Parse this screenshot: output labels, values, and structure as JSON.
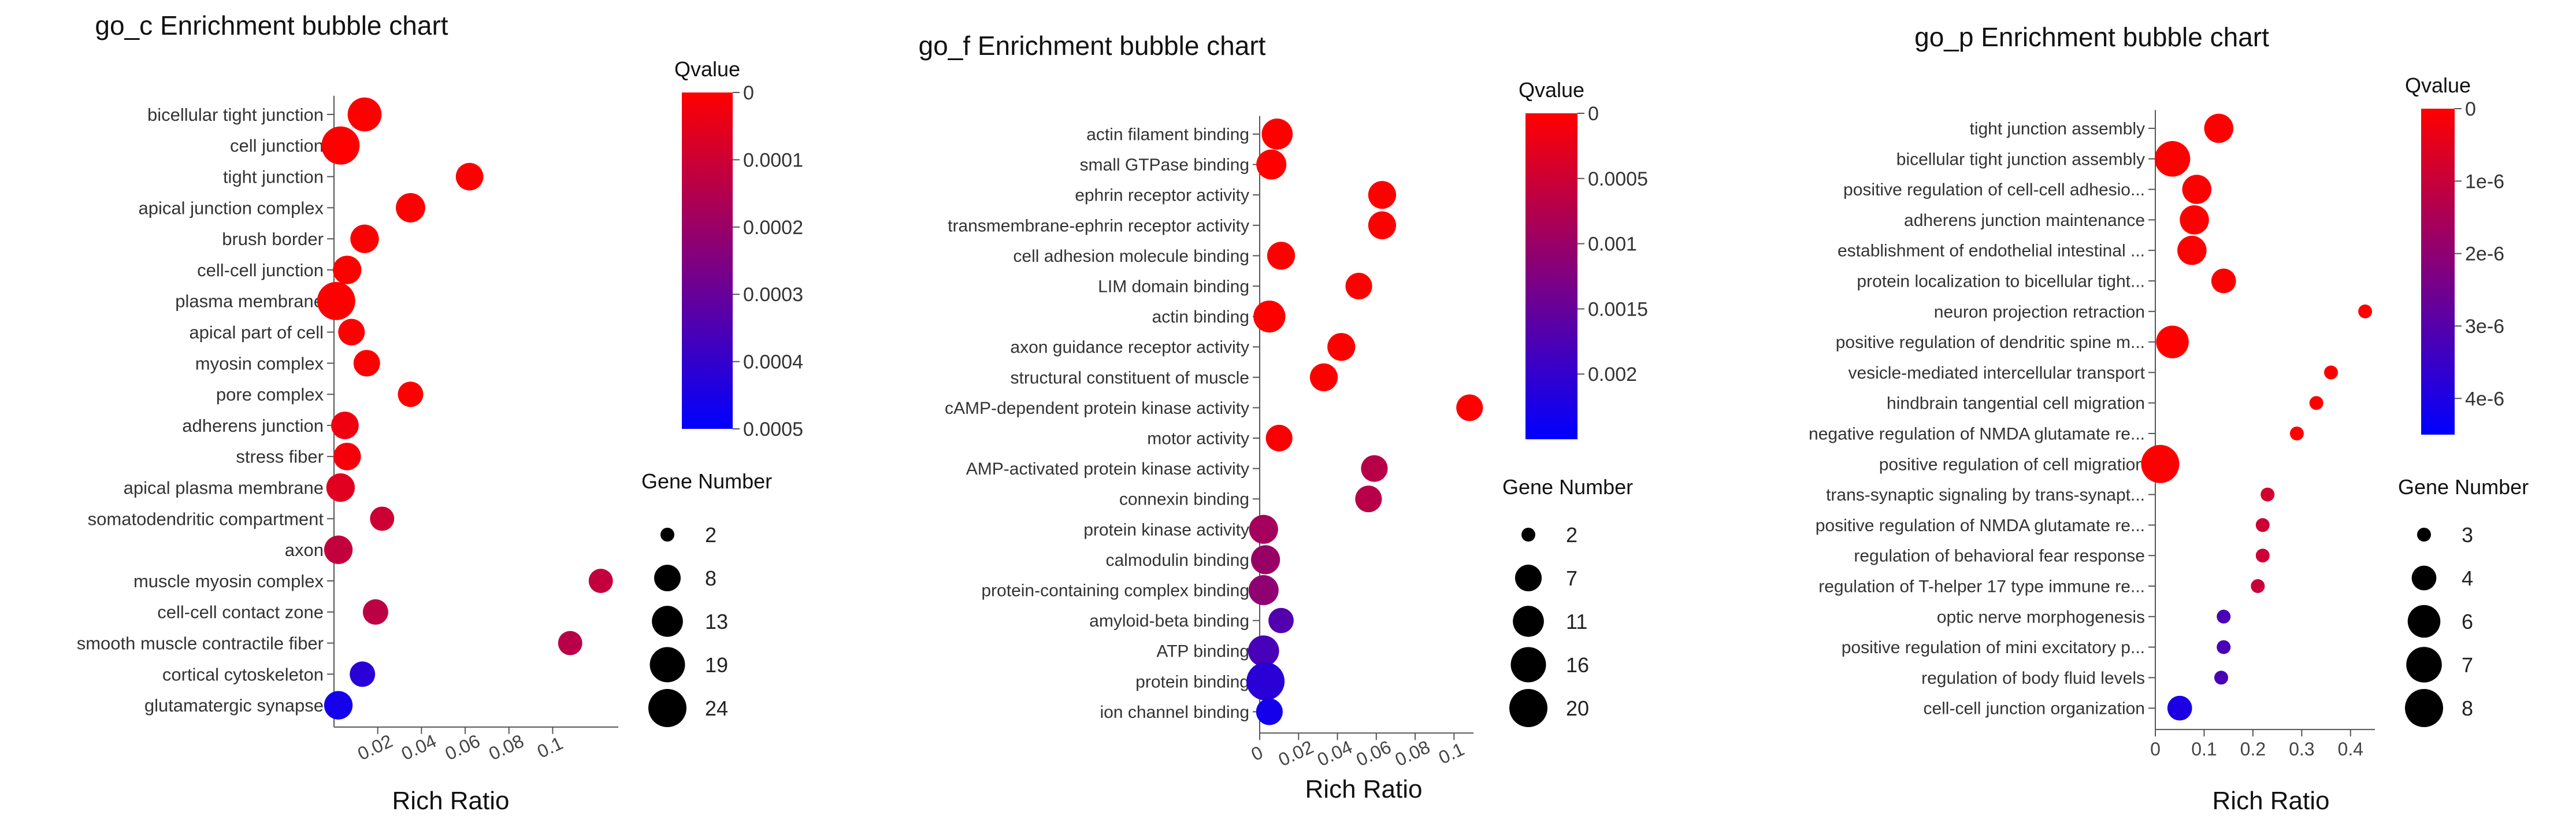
{
  "chart_data": [
    {
      "type": "scatter",
      "title": "go_c Enrichment bubble chart",
      "xlabel": "Rich Ratio",
      "ylabel": "",
      "xlim": [
        0,
        0.13
      ],
      "xticks": [
        0.02,
        0.04,
        0.06,
        0.08,
        0.1
      ],
      "tick_labels": [
        "0.02",
        "0.04",
        "0.06",
        "0.08",
        "0.1"
      ],
      "categories": [
        "bicellular tight junction",
        "cell junction",
        "tight junction",
        "apical junction complex",
        "brush border",
        "cell-cell junction",
        "plasma membrane",
        "apical part of cell",
        "myosin complex",
        "pore complex",
        "adherens junction",
        "stress fiber",
        "apical plasma membrane",
        "somatodendritic compartment",
        "axon",
        "muscle myosin complex",
        "cell-cell contact zone",
        "smooth muscle contractile fiber",
        "cortical cytoskeleton",
        "glutamatergic synapse"
      ],
      "x": [
        0.014,
        0.003,
        0.062,
        0.035,
        0.014,
        0.006,
        0.001,
        0.008,
        0.015,
        0.035,
        0.005,
        0.006,
        0.003,
        0.022,
        0.002,
        0.122,
        0.019,
        0.108,
        0.013,
        0.002
      ],
      "size": [
        17,
        24,
        9,
        11,
        10,
        10,
        24,
        8,
        8,
        7,
        9,
        9,
        10,
        6,
        10,
        6,
        7,
        6,
        7,
        10
      ],
      "color": [
        0.0,
        0.0,
        0.0,
        0.0,
        0.0,
        0.0,
        0.0,
        0.0,
        0.0,
        0.0,
        3e-05,
        2e-05,
        6e-05,
        0.0001,
        0.00012,
        0.00012,
        0.00013,
        0.00014,
        0.00042,
        0.00046
      ],
      "legend": {
        "color_title": "Qvalue",
        "color_range": [
          0,
          0.0005
        ],
        "color_ticks": [
          0,
          0.0001,
          0.0002,
          0.0003,
          0.0004,
          0.0005
        ],
        "color_tick_labels": [
          "0",
          "0.0001",
          "0.0002",
          "0.0003",
          "0.0004",
          "0.0005"
        ],
        "size_title": "Gene Number",
        "size_values": [
          2,
          8,
          13,
          19,
          24
        ],
        "size_labels": [
          "2",
          "8",
          "13",
          "19",
          "24"
        ]
      }
    },
    {
      "type": "scatter",
      "title": "go_f Enrichment bubble chart",
      "xlabel": "Rich Ratio",
      "ylabel": "",
      "xlim": [
        0,
        0.11
      ],
      "xticks": [
        0,
        0.02,
        0.04,
        0.06,
        0.08,
        0.1
      ],
      "tick_labels": [
        "0",
        "0.02",
        "0.04",
        "0.06",
        "0.08",
        "0.1"
      ],
      "categories": [
        "actin filament binding",
        "small GTPase binding",
        "ephrin receptor activity",
        "transmembrane-ephrin receptor activity",
        "cell adhesion molecule binding",
        "LIM domain binding",
        "actin binding",
        "axon guidance receptor activity",
        "structural constituent of muscle",
        "cAMP-dependent protein kinase activity",
        "motor activity",
        "AMP-activated protein kinase activity",
        "connexin binding",
        "protein kinase activity",
        "calmodulin binding",
        "protein-containing complex binding",
        "amyloid-beta binding",
        "ATP binding",
        "protein binding",
        "ion channel binding"
      ],
      "x": [
        0.009,
        0.006,
        0.063,
        0.063,
        0.011,
        0.051,
        0.005,
        0.042,
        0.033,
        0.108,
        0.01,
        0.059,
        0.056,
        0.002,
        0.003,
        0.002,
        0.011,
        0.002,
        0.003,
        0.005
      ],
      "size": [
        11,
        10,
        8,
        8,
        8,
        7,
        12,
        8,
        8,
        7,
        7,
        7,
        7,
        9,
        9,
        10,
        6,
        11,
        20,
        7
      ],
      "color": [
        0.0,
        0.0,
        0.0,
        0.0,
        0.0,
        0.0,
        0.0,
        0.0,
        0.0,
        0.0,
        5e-05,
        0.0007,
        0.0007,
        0.0009,
        0.001,
        0.0011,
        0.0017,
        0.0018,
        0.0021,
        0.0023
      ],
      "legend": {
        "color_title": "Qvalue",
        "color_range": [
          0,
          0.0025
        ],
        "color_ticks": [
          0,
          0.0005,
          0.001,
          0.0015,
          0.002
        ],
        "color_tick_labels": [
          "0",
          "0.0005",
          "0.001",
          "0.0015",
          "0.002"
        ],
        "size_title": "Gene Number",
        "size_values": [
          2,
          7,
          11,
          16,
          20
        ],
        "size_labels": [
          "2",
          "7",
          "11",
          "16",
          "20"
        ]
      }
    },
    {
      "type": "scatter",
      "title": "go_p Enrichment bubble chart",
      "xlabel": "Rich Ratio",
      "ylabel": "",
      "xlim": [
        0,
        0.45
      ],
      "xticks": [
        0,
        0.1,
        0.2,
        0.3,
        0.4
      ],
      "tick_labels": [
        "0",
        "0.1",
        "0.2",
        "0.3",
        "0.4"
      ],
      "categories": [
        "tight junction assembly",
        "bicellular tight junction assembly",
        "positive regulation of cell-cell adhesio...",
        "adherens junction maintenance",
        "establishment of endothelial intestinal ...",
        "protein localization to bicellular tight...",
        "neuron projection retraction",
        "positive regulation of dendritic spine m...",
        "vesicle-mediated intercellular transport",
        "hindbrain tangential cell migration",
        "negative regulation of NMDA glutamate re...",
        "positive regulation of cell migration",
        "trans-synaptic signaling by trans-synapt...",
        "positive regulation of NMDA glutamate re...",
        "regulation of behavioral fear response",
        "regulation of T-helper 17 type immune re...",
        "optic nerve morphogenesis",
        "positive regulation of mini excitatory p...",
        "regulation of body fluid levels",
        "cell-cell junction organization"
      ],
      "x": [
        0.13,
        0.035,
        0.085,
        0.08,
        0.075,
        0.14,
        0.43,
        0.035,
        0.36,
        0.33,
        0.29,
        0.01,
        0.23,
        0.22,
        0.22,
        0.21,
        0.14,
        0.14,
        0.135,
        0.05
      ],
      "size": [
        5,
        7,
        5,
        5,
        5,
        4,
        3,
        6,
        3,
        3,
        3,
        8,
        3,
        3,
        3,
        3,
        3,
        3,
        3,
        4
      ],
      "color": [
        0.0,
        0.0,
        0.0,
        0.0,
        0.0,
        0.0,
        0.0,
        0.0,
        0.0,
        0.0,
        0.0,
        0.0,
        8e-07,
        9e-07,
        9e-07,
        1e-06,
        3.2e-06,
        3.2e-06,
        3.2e-06,
        4e-06
      ],
      "legend": {
        "color_title": "Qvalue",
        "color_range": [
          0,
          4.5e-06
        ],
        "color_ticks": [
          0,
          1e-06,
          2e-06,
          3e-06,
          4e-06
        ],
        "color_tick_labels": [
          "0",
          "1e-6",
          "2e-6",
          "3e-6",
          "4e-6"
        ],
        "size_title": "Gene Number",
        "size_values": [
          3,
          4,
          6,
          7,
          8
        ],
        "size_labels": [
          "3",
          "4",
          "6",
          "7",
          "8"
        ]
      }
    }
  ]
}
